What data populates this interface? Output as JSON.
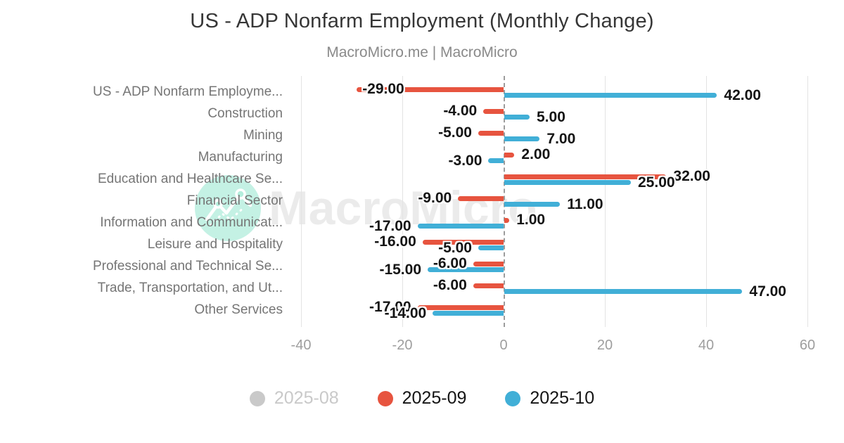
{
  "header": {
    "title": "US - ADP Nonfarm Employment (Monthly Change)",
    "subtitle": "MacroMicro.me | MacroMicro"
  },
  "watermark": {
    "text": "MacroMicro",
    "logo_color": "#b5eedd"
  },
  "chart_data": {
    "type": "bar",
    "orientation": "horizontal",
    "title": "US - ADP Nonfarm Employment (Monthly Change)",
    "subtitle": "MacroMicro.me | MacroMicro",
    "categories": [
      "US - ADP Nonfarm Employme...",
      "Construction",
      "Mining",
      "Manufacturing",
      "Education and Healthcare Se...",
      "Financial Sector",
      "Information and Communicat...",
      "Leisure and Hospitality",
      "Professional and Technical Se...",
      "Trade, Transportation, and Ut...",
      "Other Services"
    ],
    "series": [
      {
        "name": "2025-08",
        "color": "#c9c9c9",
        "visible": false
      },
      {
        "name": "2025-09",
        "color": "#e7543f",
        "visible": true,
        "values": [
          -29,
          -4,
          -5,
          2,
          32,
          -9,
          1,
          -16,
          -6,
          -6,
          -17
        ]
      },
      {
        "name": "2025-10",
        "color": "#41afd7",
        "visible": true,
        "values": [
          42,
          5,
          7,
          -3,
          25,
          11,
          -17,
          -5,
          -15,
          47,
          -14
        ]
      }
    ],
    "x_ticks": [
      -40,
      -20,
      0,
      20,
      40,
      60
    ],
    "xlim": [
      -41.5,
      60.5
    ],
    "value_label_format": "0.00",
    "grid": true,
    "zero_line": "dashed",
    "legend_position": "bottom"
  }
}
